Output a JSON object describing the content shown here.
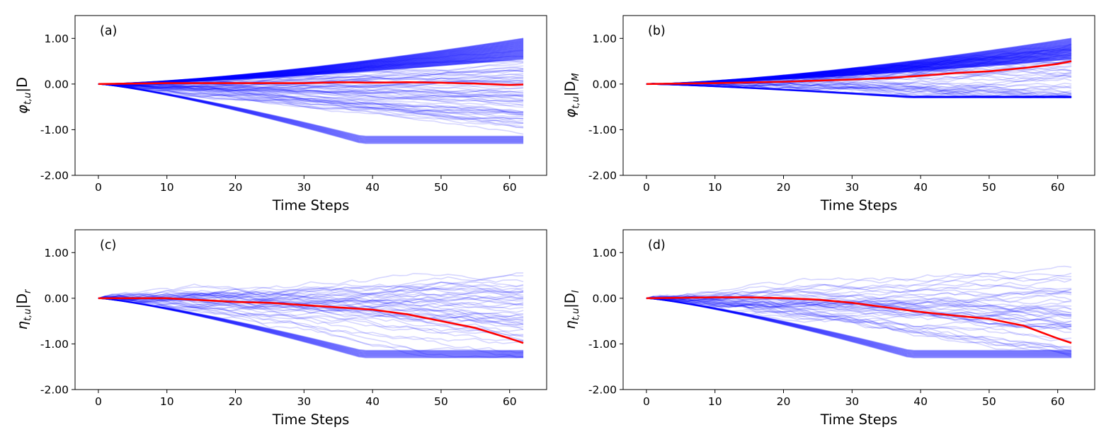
{
  "colors": {
    "simulation": "#0000ff",
    "mean": "#ff0000",
    "frame": "#000000",
    "background": "#ffffff"
  },
  "chart_data": [
    {
      "type": "line",
      "panel_label": "(a)",
      "xlabel": "Time Steps",
      "ylabel": {
        "symbol": "φ",
        "sub": "t,u",
        "bar": "|D",
        "bar_sub": ""
      },
      "xlim": [
        -3.4,
        65.4
      ],
      "ylim": [
        -2.0,
        1.5
      ],
      "xticks": [
        0,
        10,
        20,
        30,
        40,
        50,
        60
      ],
      "xtick_labels": [
        "0",
        "10",
        "20",
        "30",
        "40",
        "50",
        "60"
      ],
      "yticks": [
        -2.0,
        -1.0,
        0.0,
        1.0
      ],
      "ytick_labels": [
        "-2.00",
        "-1.00",
        "0.00",
        "1.00"
      ],
      "n_steps": 62,
      "upper_envelope_end": 1.0,
      "lower_envelope_end": -1.3,
      "simulation_band": {
        "mid_start": 0.0,
        "mid_end": -0.15,
        "spread_end": 0.7,
        "amplitude_scale": 0.5,
        "n_paths": 70,
        "dense_upper": true
      },
      "series": [
        {
          "name": "mean",
          "x": [
            0,
            10,
            20,
            30,
            35,
            40,
            45,
            50,
            55,
            60,
            62
          ],
          "y": [
            0.0,
            0.02,
            0.02,
            0.02,
            0.04,
            0.03,
            0.04,
            0.03,
            0.01,
            -0.02,
            -0.01
          ]
        }
      ]
    },
    {
      "type": "line",
      "panel_label": "(b)",
      "xlabel": "Time Steps",
      "ylabel": {
        "symbol": "φ",
        "sub": "t,u",
        "bar": "|D",
        "bar_sub": "M"
      },
      "xlim": [
        -3.4,
        65.4
      ],
      "ylim": [
        -2.0,
        1.5
      ],
      "xticks": [
        0,
        10,
        20,
        30,
        40,
        50,
        60
      ],
      "xtick_labels": [
        "0",
        "10",
        "20",
        "30",
        "40",
        "50",
        "60"
      ],
      "yticks": [
        -2.0,
        -1.0,
        0.0,
        1.0
      ],
      "ytick_labels": [
        "-2.00",
        "-1.00",
        "0.00",
        "1.00"
      ],
      "n_steps": 62,
      "upper_envelope_end": 1.0,
      "lower_envelope_end": -0.3,
      "simulation_band": {
        "mid_start": 0.0,
        "mid_end": 0.3,
        "spread_end": 0.7,
        "amplitude_scale": 0.8,
        "n_paths": 60,
        "dense_upper": true
      },
      "series": [
        {
          "name": "mean",
          "x": [
            0,
            10,
            20,
            30,
            35,
            40,
            45,
            50,
            55,
            60,
            62
          ],
          "y": [
            0.0,
            0.02,
            0.05,
            0.1,
            0.13,
            0.18,
            0.24,
            0.28,
            0.35,
            0.44,
            0.5
          ]
        }
      ]
    },
    {
      "type": "line",
      "panel_label": "(c)",
      "xlabel": "Time Steps",
      "ylabel": {
        "symbol": "η",
        "sub": "t,u",
        "bar": "|D",
        "bar_sub": "r"
      },
      "xlim": [
        -3.4,
        65.4
      ],
      "ylim": [
        -2.0,
        1.5
      ],
      "xticks": [
        0,
        10,
        20,
        30,
        40,
        50,
        60
      ],
      "xtick_labels": [
        "0",
        "10",
        "20",
        "30",
        "40",
        "50",
        "60"
      ],
      "yticks": [
        -2.0,
        -1.0,
        0.0,
        1.0
      ],
      "ytick_labels": [
        "-2.00",
        "-1.00",
        "0.00",
        "1.00"
      ],
      "n_steps": 62,
      "upper_envelope_end": null,
      "lower_envelope_end": -1.3,
      "simulation_band": {
        "mid_start": 0.0,
        "mid_end": -0.5,
        "spread_end": 0.75,
        "amplitude_scale": 0.9,
        "n_paths": 50,
        "dense_upper": false
      },
      "series": [
        {
          "name": "mean",
          "x": [
            0,
            10,
            20,
            25,
            30,
            35,
            40,
            45,
            50,
            55,
            60,
            62
          ],
          "y": [
            0.0,
            0.0,
            -0.08,
            -0.1,
            -0.15,
            -0.2,
            -0.25,
            -0.35,
            -0.5,
            -0.65,
            -0.88,
            -0.98
          ]
        }
      ]
    },
    {
      "type": "line",
      "panel_label": "(d)",
      "xlabel": "Time Steps",
      "ylabel": {
        "symbol": "η",
        "sub": "t,u",
        "bar": "|D",
        "bar_sub": "I"
      },
      "xlim": [
        -3.4,
        65.4
      ],
      "ylim": [
        -2.0,
        1.5
      ],
      "xticks": [
        0,
        10,
        20,
        30,
        40,
        50,
        60
      ],
      "xtick_labels": [
        "0",
        "10",
        "20",
        "30",
        "40",
        "50",
        "60"
      ],
      "yticks": [
        -2.0,
        -1.0,
        0.0,
        1.0
      ],
      "ytick_labels": [
        "-2.00",
        "-1.00",
        "0.00",
        "1.00"
      ],
      "n_steps": 62,
      "upper_envelope_end": null,
      "lower_envelope_end": -1.3,
      "simulation_band": {
        "mid_start": 0.0,
        "mid_end": -0.5,
        "spread_end": 0.75,
        "amplitude_scale": 0.9,
        "n_paths": 50,
        "dense_upper": false
      },
      "series": [
        {
          "name": "mean",
          "x": [
            0,
            10,
            15,
            20,
            25,
            30,
            35,
            40,
            45,
            50,
            55,
            60,
            62
          ],
          "y": [
            0.0,
            0.02,
            0.02,
            0.0,
            -0.03,
            -0.1,
            -0.2,
            -0.3,
            -0.38,
            -0.45,
            -0.6,
            -0.88,
            -0.98
          ]
        }
      ]
    }
  ]
}
